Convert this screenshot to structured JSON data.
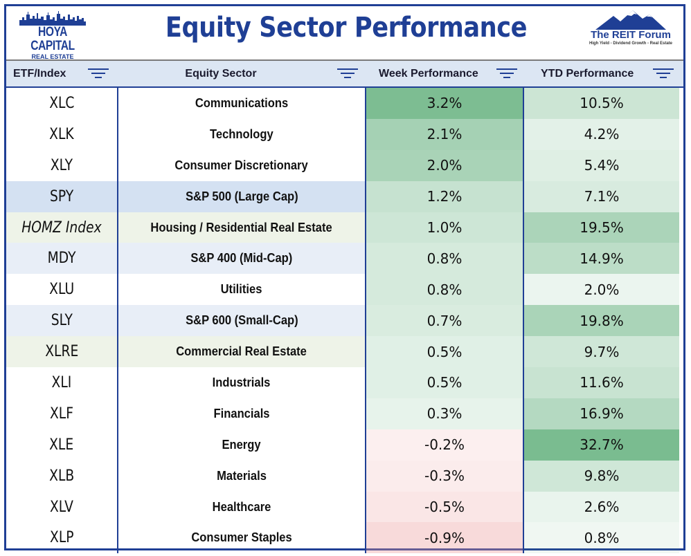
{
  "header": {
    "title": "Equity Sector Performance",
    "left_logo": {
      "line1": "HOYA CAPITAL",
      "line2": "REAL ESTATE",
      "icon": "skyline-logo-icon"
    },
    "right_logo": {
      "name": "The REIT Forum",
      "tagline": "High Yield - Dividend Growth - Real Estate",
      "icon": "mountain-logo-icon"
    }
  },
  "columns": [
    {
      "label": "ETF/Index",
      "icon": "filter-icon"
    },
    {
      "label": "Equity Sector",
      "icon": "filter-icon"
    },
    {
      "label": "Week Performance",
      "icon": "filter-icon"
    },
    {
      "label": "YTD Performance",
      "icon": "filter-icon"
    }
  ],
  "colors": {
    "brand_blue": "#1f3f95",
    "header_bg": "#dce6f3",
    "positive_green": "#63b07d",
    "negative_red": "#f4cccc",
    "benchmark_blue": "#d4e1f2",
    "real_estate_tint": "#eef3e8"
  },
  "rows": [
    {
      "ticker": "XLC",
      "sector": "Communications",
      "week": "3.2%",
      "ytd": "10.5%",
      "row_tint": "none"
    },
    {
      "ticker": "XLK",
      "sector": "Technology",
      "week": "2.1%",
      "ytd": "4.2%",
      "row_tint": "none"
    },
    {
      "ticker": "XLY",
      "sector": "Consumer Discretionary",
      "week": "2.0%",
      "ytd": "5.4%",
      "row_tint": "none"
    },
    {
      "ticker": "SPY",
      "sector": "S&P 500 (Large Cap)",
      "week": "1.2%",
      "ytd": "7.1%",
      "row_tint": "benchmark"
    },
    {
      "ticker": "HOMZ Index",
      "sector": "Housing / Residential Real Estate",
      "week": "1.0%",
      "ytd": "19.5%",
      "row_tint": "real_estate"
    },
    {
      "ticker": "MDY",
      "sector": "S&P 400 (Mid-Cap)",
      "week": "0.8%",
      "ytd": "14.9%",
      "row_tint": "benchmark_light"
    },
    {
      "ticker": "XLU",
      "sector": "Utilities",
      "week": "0.8%",
      "ytd": "2.0%",
      "row_tint": "none"
    },
    {
      "ticker": "SLY",
      "sector": "S&P 600 (Small-Cap)",
      "week": "0.7%",
      "ytd": "19.8%",
      "row_tint": "benchmark_light"
    },
    {
      "ticker": "XLRE",
      "sector": "Commercial Real Estate",
      "week": "0.5%",
      "ytd": "9.7%",
      "row_tint": "real_estate"
    },
    {
      "ticker": "XLI",
      "sector": "Industrials",
      "week": "0.5%",
      "ytd": "11.6%",
      "row_tint": "none"
    },
    {
      "ticker": "XLF",
      "sector": "Financials",
      "week": "0.3%",
      "ytd": "16.9%",
      "row_tint": "none"
    },
    {
      "ticker": "XLE",
      "sector": "Energy",
      "week": "-0.2%",
      "ytd": "32.7%",
      "row_tint": "none"
    },
    {
      "ticker": "XLB",
      "sector": "Materials",
      "week": "-0.3%",
      "ytd": "9.8%",
      "row_tint": "none"
    },
    {
      "ticker": "XLV",
      "sector": "Healthcare",
      "week": "-0.5%",
      "ytd": "2.6%",
      "row_tint": "none"
    },
    {
      "ticker": "XLP",
      "sector": "Consumer Staples",
      "week": "-0.9%",
      "ytd": "0.8%",
      "row_tint": "none"
    }
  ]
}
